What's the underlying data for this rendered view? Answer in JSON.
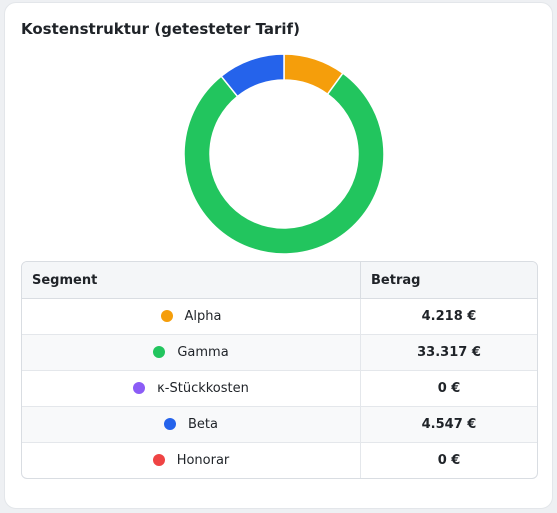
{
  "card": {
    "title": "Kostenstruktur (getesteter Tarif)"
  },
  "chart_data": {
    "type": "pie",
    "variant": "donut",
    "slices": [
      {
        "label": "Alpha",
        "value": 4218,
        "color": "#f59e0b"
      },
      {
        "label": "Gamma",
        "value": 33317,
        "color": "#22c55e"
      },
      {
        "label": "κ-Stückkosten",
        "value": 0,
        "color": "#8b5cf6"
      },
      {
        "label": "Beta",
        "value": 4547,
        "color": "#2563eb"
      },
      {
        "label": "Honorar",
        "value": 0,
        "color": "#ef4444"
      }
    ]
  },
  "table": {
    "headers": {
      "segment": "Segment",
      "amount": "Betrag"
    },
    "rows": [
      {
        "segment": "Alpha",
        "amount": "4.218 €",
        "color": "#f59e0b"
      },
      {
        "segment": "Gamma",
        "amount": "33.317 €",
        "color": "#22c55e"
      },
      {
        "segment": "κ-Stückkosten",
        "amount": "0 €",
        "color": "#8b5cf6"
      },
      {
        "segment": "Beta",
        "amount": "4.547 €",
        "color": "#2563eb"
      },
      {
        "segment": "Honorar",
        "amount": "0 €",
        "color": "#ef4444"
      }
    ]
  }
}
